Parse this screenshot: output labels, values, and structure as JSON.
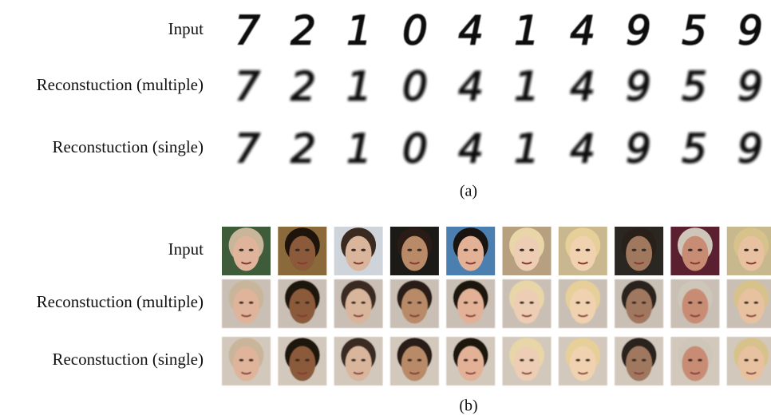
{
  "panel_a": {
    "rows": [
      {
        "label": "Input",
        "digits": [
          "7",
          "2",
          "1",
          "0",
          "4",
          "1",
          "4",
          "9",
          "5",
          "9"
        ]
      },
      {
        "label": "Reconstuction (multiple)",
        "digits": [
          "7",
          "2",
          "1",
          "0",
          "4",
          "1",
          "4",
          "9",
          "5",
          "9"
        ]
      },
      {
        "label": "Reconstuction (single)",
        "digits": [
          "7",
          "2",
          "1",
          "0",
          "4",
          "1",
          "4",
          "9",
          "5",
          "9"
        ]
      }
    ],
    "caption": "(a)"
  },
  "panel_b": {
    "rows": [
      {
        "label": "Input"
      },
      {
        "label": "Reconstuction (multiple)"
      },
      {
        "label": "Reconstuction (single)"
      }
    ],
    "caption": "(b)"
  }
}
